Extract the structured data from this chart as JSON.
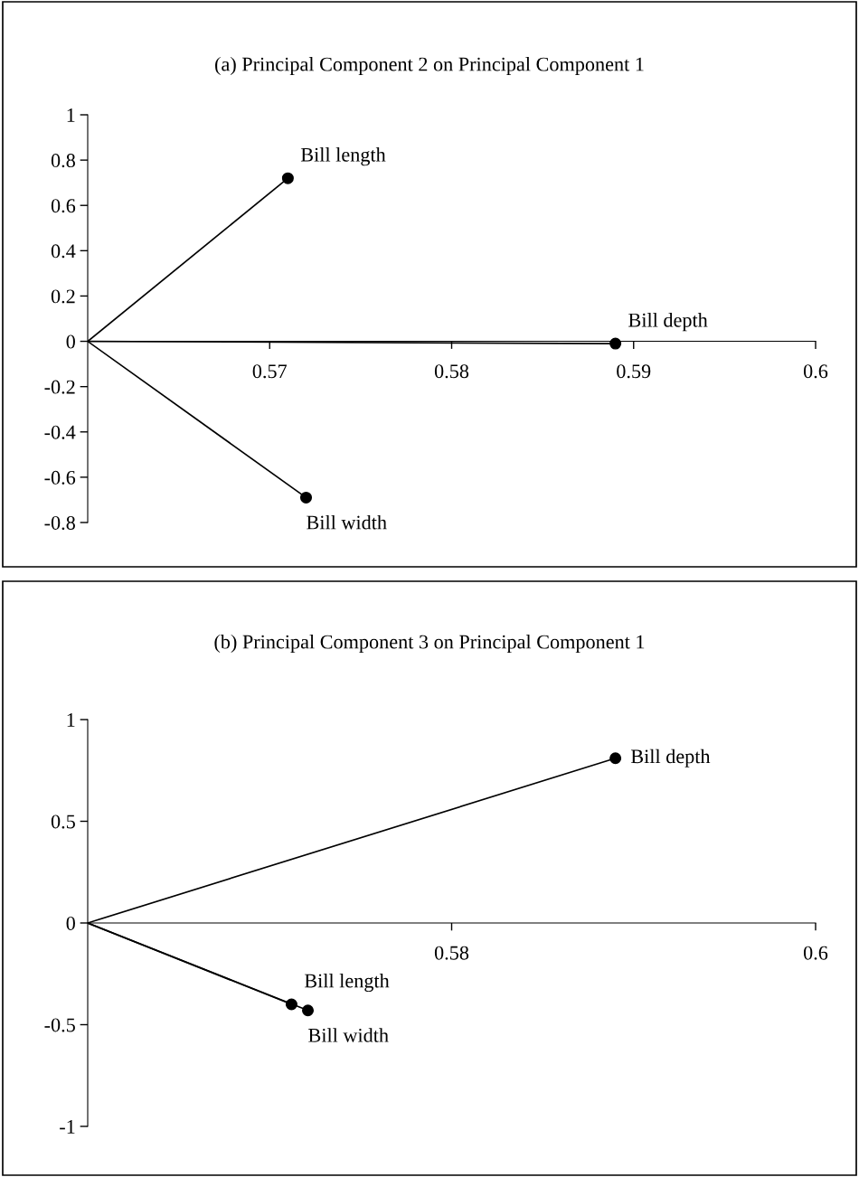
{
  "chart_data": [
    {
      "type": "scatter",
      "title": "(a) Principal Component 2 on Principal Component 1",
      "xlim": [
        0.56,
        0.6
      ],
      "xticks": [
        0.57,
        0.58,
        0.59,
        0.6
      ],
      "ylim": [
        -0.8,
        1
      ],
      "yticks": [
        -0.8,
        -0.6,
        -0.4,
        -0.2,
        0,
        0.2,
        0.4,
        0.6,
        0.8,
        1
      ],
      "grid": false,
      "legend": false,
      "series": [
        {
          "type": "line",
          "marker": "none",
          "color": "#000000",
          "x": [
            0.56,
            0.571
          ],
          "values": [
            0,
            0.72
          ]
        },
        {
          "type": "line",
          "marker": "none",
          "color": "#000000",
          "x": [
            0.56,
            0.572
          ],
          "values": [
            0,
            -0.69
          ]
        },
        {
          "type": "line",
          "marker": "none",
          "color": "#000000",
          "x": [
            0.56,
            0.589
          ],
          "values": [
            0,
            -0.01
          ]
        },
        {
          "marker": "circle",
          "name": "Bill length",
          "color": "#000000",
          "x": [
            0.571
          ],
          "values": [
            0.72
          ]
        },
        {
          "marker": "circle",
          "name": "Bill width",
          "color": "#000000",
          "x": [
            0.572
          ],
          "values": [
            -0.69
          ]
        },
        {
          "marker": "circle",
          "name": "Bill depth",
          "color": "#000000",
          "x": [
            0.589
          ],
          "values": [
            -0.01
          ]
        }
      ]
    },
    {
      "type": "scatter",
      "title": "(b) Principal Component 3 on Principal Component 1",
      "xlim": [
        0.56,
        0.6
      ],
      "xticks": [
        0.58,
        0.6
      ],
      "ylim": [
        -1,
        1
      ],
      "yticks": [
        -1,
        -0.5,
        0,
        0.5,
        1
      ],
      "grid": false,
      "legend": false,
      "series": [
        {
          "type": "line",
          "marker": "none",
          "color": "#000000",
          "x": [
            0.56,
            0.589
          ],
          "values": [
            0,
            0.81
          ]
        },
        {
          "type": "line",
          "marker": "none",
          "color": "#000000",
          "x": [
            0.56,
            0.5712
          ],
          "values": [
            0,
            -0.4
          ]
        },
        {
          "type": "line",
          "marker": "none",
          "color": "#000000",
          "x": [
            0.56,
            0.5721
          ],
          "values": [
            0,
            -0.43
          ]
        },
        {
          "marker": "circle",
          "name": "Bill depth",
          "color": "#000000",
          "x": [
            0.589
          ],
          "values": [
            0.81
          ]
        },
        {
          "marker": "circle",
          "name": "Bill length",
          "color": "#000000",
          "x": [
            0.5712
          ],
          "values": [
            -0.4
          ]
        },
        {
          "marker": "circle",
          "name": "Bill width",
          "color": "#000000",
          "x": [
            0.5721
          ],
          "values": [
            -0.43
          ]
        }
      ]
    }
  ]
}
